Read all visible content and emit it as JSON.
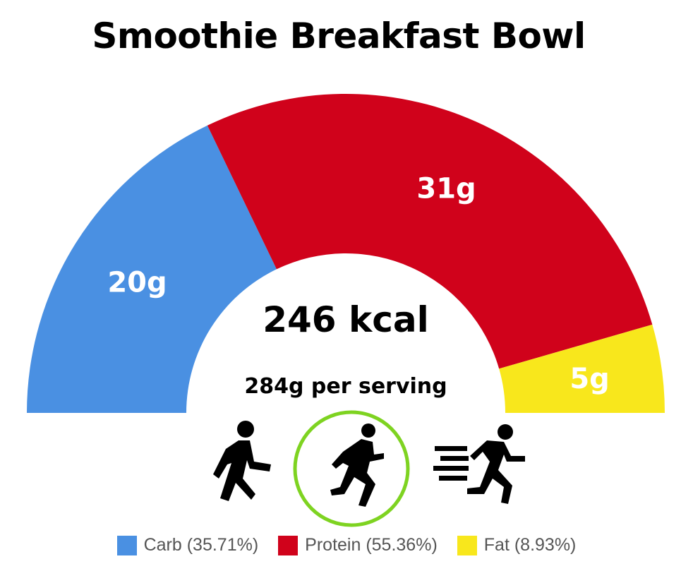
{
  "chart_data": {
    "type": "pie",
    "style": "half-donut",
    "title": "Smoothie Breakfast Bowl",
    "center_value": "246 kcal",
    "center_subtext": "284g per serving",
    "series": [
      {
        "name": "Carb",
        "grams": 20,
        "label": "20g",
        "percent": 35.71,
        "legend": "Carb (35.71%)",
        "color": "#4A90E2"
      },
      {
        "name": "Protein",
        "grams": 31,
        "label": "31g",
        "percent": 55.36,
        "legend": "Protein (55.36%)",
        "color": "#D0021B"
      },
      {
        "name": "Fat",
        "grams": 5,
        "label": "5g",
        "percent": 8.93,
        "legend": "Fat (8.93%)",
        "color": "#F8E71C"
      }
    ],
    "legend_position": "bottom"
  },
  "activities": [
    {
      "name": "walking-icon",
      "selected": false
    },
    {
      "name": "running-icon",
      "selected": true
    },
    {
      "name": "sprinting-icon",
      "selected": false
    }
  ],
  "colors": {
    "selected_ring": "#7ED321"
  }
}
